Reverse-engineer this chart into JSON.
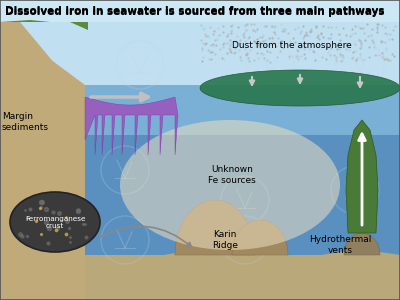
{
  "title": "Dissolved iron in seawater is sourced from three main pathways",
  "title_fontsize": 7.5,
  "bg_color": "#cce8f5",
  "border_color": "#555555",
  "labels": {
    "dust": "Dust from the atmosphere",
    "margin": "Margin\nsediments",
    "unknown": "Unknown\nFe sources",
    "karin": "Karin\nRidge",
    "hydrothermal": "Hydrothermal\nvents",
    "ferro": "Ferromanganese\ncrust"
  },
  "label_fontsize": 6.5,
  "sky_color_top": "#c8e8f8",
  "sky_color_bot": "#a0c8e8",
  "ocean_surf_color": "#7ab8d8",
  "ocean_deep_color": "#4a88b8",
  "seafloor_color": "#b8a87a",
  "margin_color": "#c4aa7a",
  "dust_plume_color": "#2a7a50",
  "margin_plume_color": "#9955bb",
  "unknown_blob_color": "#f0e4c8",
  "hydro_plume_color": "#4a7a38",
  "ferro_color": "#404040",
  "ridge_color": "#a08860",
  "arrow_color": "#bbbbbb",
  "watermark_color": "#c0d8e8"
}
